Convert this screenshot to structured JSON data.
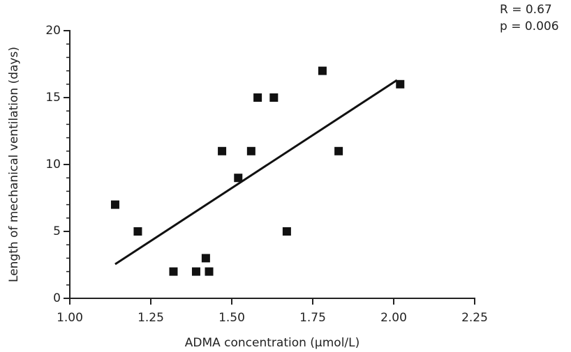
{
  "chart_data": {
    "type": "scatter",
    "x_label": "ADMA concentration (µmol/L)",
    "y_label": "Length of mechanical ventilation (days)",
    "annotations": [
      "R = 0.67",
      "p = 0.006"
    ],
    "series": [
      {
        "color": "#111111",
        "x": [
          1.14,
          1.21,
          1.32,
          1.39,
          1.42,
          1.43,
          1.47,
          1.52,
          1.56,
          1.58,
          1.63,
          1.67,
          1.78,
          1.83,
          2.02
        ],
        "values": [
          7,
          5,
          2,
          2,
          3,
          2,
          11,
          9,
          11,
          15,
          15,
          5,
          17,
          11,
          16
        ]
      }
    ],
    "fit_line": {
      "x": [
        1.14,
        2.01
      ],
      "y": [
        2.55,
        16.3
      ]
    },
    "xlim": [
      1.0,
      2.25
    ],
    "xticks": [
      {
        "value": 1.0,
        "label": "1.00"
      },
      {
        "value": 1.25,
        "label": "1.25"
      },
      {
        "value": 1.5,
        "label": "1.50"
      },
      {
        "value": 1.75,
        "label": "1.75"
      },
      {
        "value": 2.0,
        "label": "2.00"
      },
      {
        "value": 2.25,
        "label": "2.25"
      }
    ],
    "ylim": [
      0,
      20
    ],
    "yticks": [
      0,
      5,
      10,
      15,
      20
    ],
    "y_minor_ticks": [
      1,
      2,
      3,
      4,
      6,
      7,
      8,
      9,
      11,
      12,
      13,
      14,
      16,
      17,
      18,
      19
    ]
  }
}
